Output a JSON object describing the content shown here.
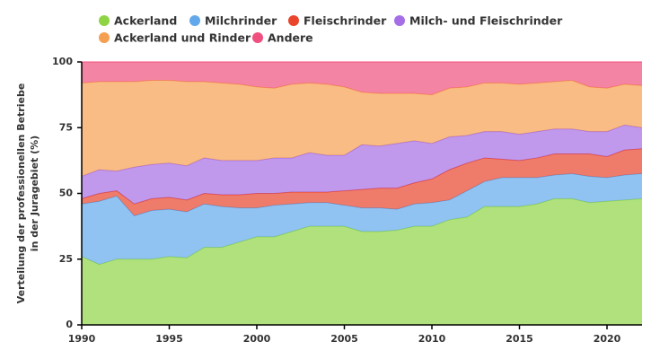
{
  "chart_data": {
    "type": "stacked_area",
    "ylabel": [
      "Verteilung der professionellen Betriebe",
      "in der Juragebiet (%)"
    ],
    "x": [
      1990,
      1991,
      1992,
      1993,
      1994,
      1995,
      1996,
      1997,
      1998,
      1999,
      2000,
      2001,
      2002,
      2003,
      2004,
      2005,
      2006,
      2007,
      2008,
      2009,
      2010,
      2011,
      2012,
      2013,
      2014,
      2015,
      2016,
      2017,
      2018,
      2019,
      2020,
      2021,
      2022
    ],
    "xlim": [
      1990,
      2022
    ],
    "xticks": [
      1990,
      1995,
      2000,
      2005,
      2010,
      2015,
      2020
    ],
    "ylim": [
      0,
      100
    ],
    "yticks": [
      0,
      25,
      50,
      75,
      100
    ],
    "series": [
      {
        "name": "Ackerland",
        "color": "#8fd444",
        "values": [
          26,
          23,
          25,
          25,
          25,
          26,
          25.5,
          29.5,
          29.5,
          31.5,
          33.5,
          33.5,
          35.5,
          37.5,
          37.5,
          37.5,
          35.5,
          35.5,
          36,
          37.5,
          37.5,
          40,
          41,
          45,
          45,
          45,
          46,
          48,
          48,
          46.5,
          47,
          47.5,
          48
        ]
      },
      {
        "name": "Milchrinder",
        "color": "#62a9ec",
        "values": [
          20,
          24,
          24,
          16.5,
          18.5,
          18,
          17.5,
          16.5,
          15.5,
          13,
          11,
          12,
          10.5,
          9,
          9,
          8,
          9,
          9,
          8,
          8.5,
          9,
          7.5,
          10,
          9.5,
          11,
          11,
          10,
          9,
          9.5,
          10,
          9,
          9.5,
          9.5
        ]
      },
      {
        "name": "Fleischrinder",
        "color": "#e8452c",
        "values": [
          2,
          3,
          2,
          4.5,
          4.5,
          4.5,
          4.5,
          4,
          4.5,
          5,
          5.5,
          4.5,
          4.5,
          4,
          4,
          5.5,
          7,
          7.5,
          8,
          8,
          9,
          11.5,
          10.5,
          9,
          7,
          6.5,
          7.5,
          8,
          7.5,
          8.5,
          8,
          9.5,
          9.5
        ]
      },
      {
        "name": "Milch- und Fleischrinder",
        "color": "#a56ee6",
        "values": [
          8.5,
          9,
          7.5,
          14,
          13,
          13,
          13,
          13.5,
          13,
          13,
          12.5,
          13.5,
          13,
          15,
          14,
          13.5,
          17,
          16,
          17,
          16,
          13.5,
          12.5,
          10.5,
          10,
          10.5,
          10,
          10,
          9.5,
          9.5,
          8.5,
          9.5,
          9.5,
          8
        ]
      },
      {
        "name": "Ackerland und Rinder",
        "color": "#f5a050",
        "values": [
          35.5,
          33.5,
          34,
          32.5,
          32,
          31.5,
          32,
          29,
          29.5,
          29,
          28,
          26.5,
          28,
          26.5,
          27,
          26,
          20,
          20,
          19,
          18,
          18.5,
          18.5,
          18.5,
          18.5,
          18.5,
          19,
          18.5,
          18,
          18.5,
          17,
          16.5,
          15.5,
          16
        ]
      },
      {
        "name": "Andere",
        "color": "#f0507e",
        "values": [
          8,
          7.5,
          7.5,
          7.5,
          7,
          7,
          7.5,
          7.5,
          8,
          8.5,
          9.5,
          10,
          8.5,
          8,
          8.5,
          9.5,
          11.5,
          12,
          12,
          12,
          12.5,
          10,
          9.5,
          8,
          8,
          8.5,
          8,
          7.5,
          7,
          9.5,
          10,
          8.5,
          9
        ]
      }
    ]
  }
}
